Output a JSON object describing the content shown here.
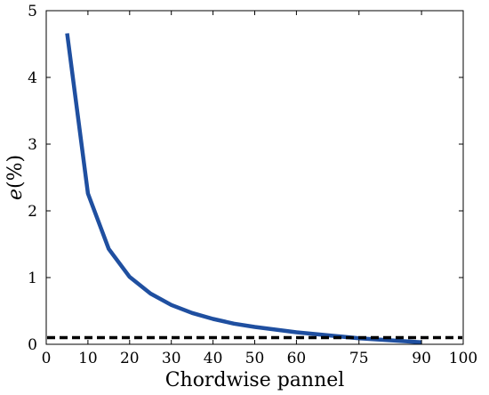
{
  "chart_data": {
    "type": "line",
    "xlabel": "Chordwise pannel",
    "ylabel_var": "e",
    "ylabel_unit": "(%)",
    "xlim": [
      0,
      100
    ],
    "ylim": [
      0,
      5
    ],
    "x_ticks": [
      0,
      10,
      20,
      30,
      40,
      50,
      60,
      75,
      90,
      100
    ],
    "y_ticks": [
      0,
      1,
      2,
      3,
      4,
      5
    ],
    "grid": false,
    "legend": "none",
    "series": [
      {
        "color": "#1f4fa0",
        "style": "solid",
        "x": [
          5,
          10,
          15,
          20,
          25,
          30,
          35,
          40,
          45,
          50,
          55,
          60,
          65,
          70,
          75,
          80,
          85,
          90
        ],
        "y": [
          4.66,
          2.26,
          1.43,
          1.01,
          0.76,
          0.59,
          0.47,
          0.38,
          0.31,
          0.26,
          0.22,
          0.18,
          0.15,
          0.12,
          0.09,
          0.07,
          0.05,
          0.03
        ]
      }
    ],
    "reference_line": {
      "y": 0.1,
      "color": "#000000",
      "style": "dashed"
    }
  }
}
